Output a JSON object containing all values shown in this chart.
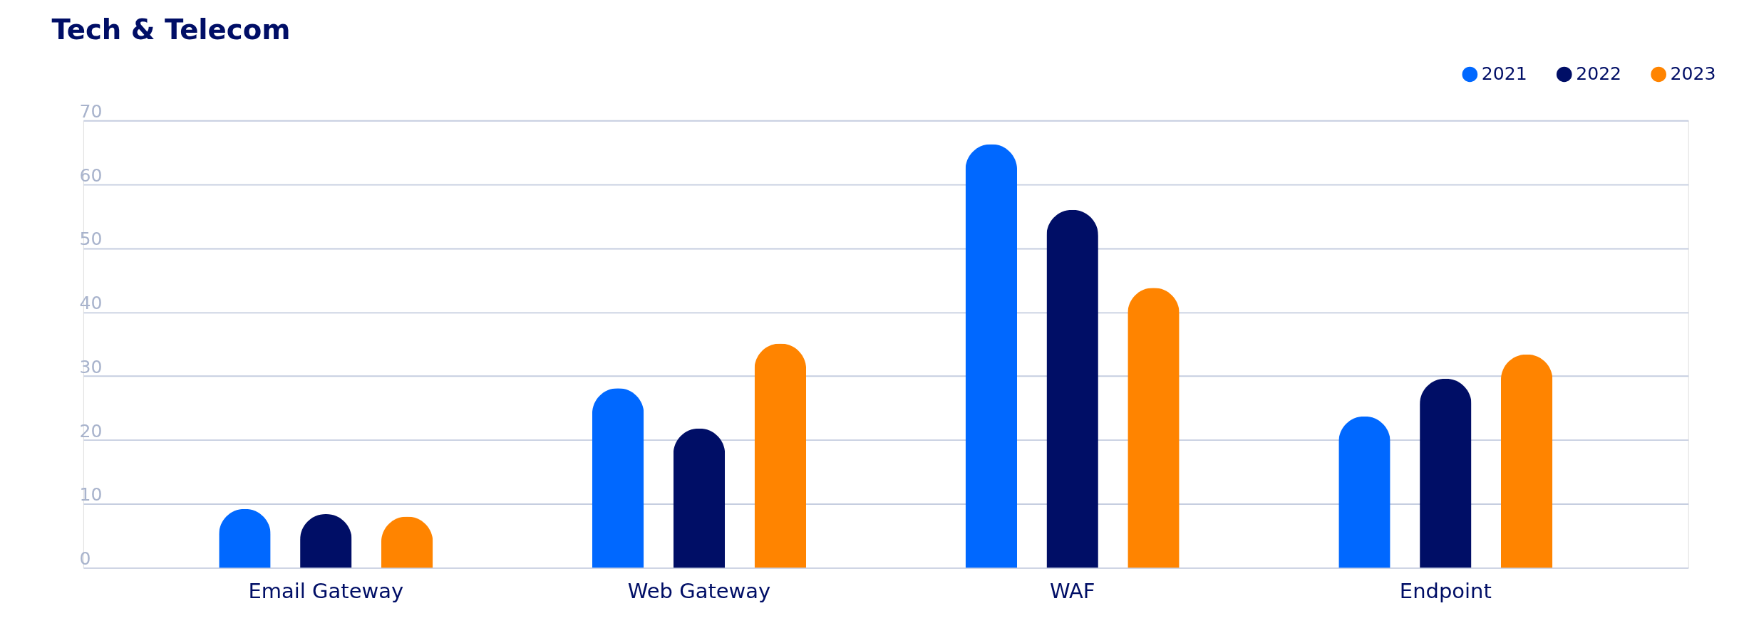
{
  "chart_data": {
    "type": "bar",
    "title": "Tech & Telecom",
    "categories": [
      "Email Gateway",
      "Web Gateway",
      "WAF",
      "Endpoint"
    ],
    "series": [
      {
        "name": "2021",
        "color": "#0068ff",
        "values": [
          9.2,
          28.1,
          66.3,
          23.7
        ]
      },
      {
        "name": "2022",
        "color": "#000e66",
        "values": [
          8.4,
          21.8,
          56.0,
          29.6
        ]
      },
      {
        "name": "2023",
        "color": "#ff8400",
        "values": [
          8.0,
          35.1,
          43.8,
          33.4
        ]
      }
    ],
    "ylim": [
      0,
      70
    ],
    "yticks": [
      0,
      10,
      20,
      30,
      40,
      50,
      60,
      70
    ],
    "grid": "y",
    "legend": "top right"
  }
}
